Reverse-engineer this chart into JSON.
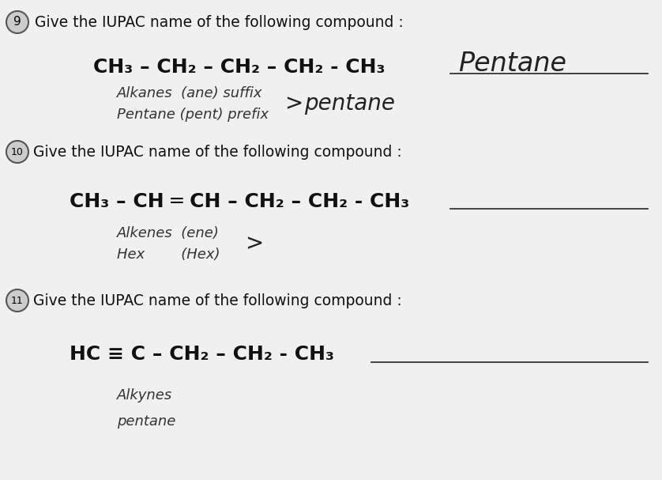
{
  "bg_color": "#e8e8e8",
  "q9_num": "9)",
  "q9_text": "Give the IUPAC name of the following compound :",
  "q9_formula": "CH₃ – CH₂ – CH₂ – CH₂ - CH₃",
  "q9_answer": "Pentane",
  "q9_note1": "Alkanes  (ane) suffix",
  "q9_note2": "Pentane (pent) prefix",
  "q9_arrow": ">",
  "q9_result": "pentane",
  "q10_num": "10)",
  "q10_text": "Give the IUPAC name of the following compound :",
  "q10_formula": "CH₃ – CH ═ CH – CH₂ – CH₂ - CH₃",
  "q10_note1": "Alkenes  (ene)",
  "q10_note2": "Hex        (Hex)",
  "q10_arrow": ">",
  "q11_num": "11)",
  "q11_text": "Give the IUPAC name of the following compound :",
  "q11_formula": "HC ≡ C – CH₂ – CH₂ - CH₃",
  "q11_note1": "Alkynes",
  "q11_note2": "pentane"
}
